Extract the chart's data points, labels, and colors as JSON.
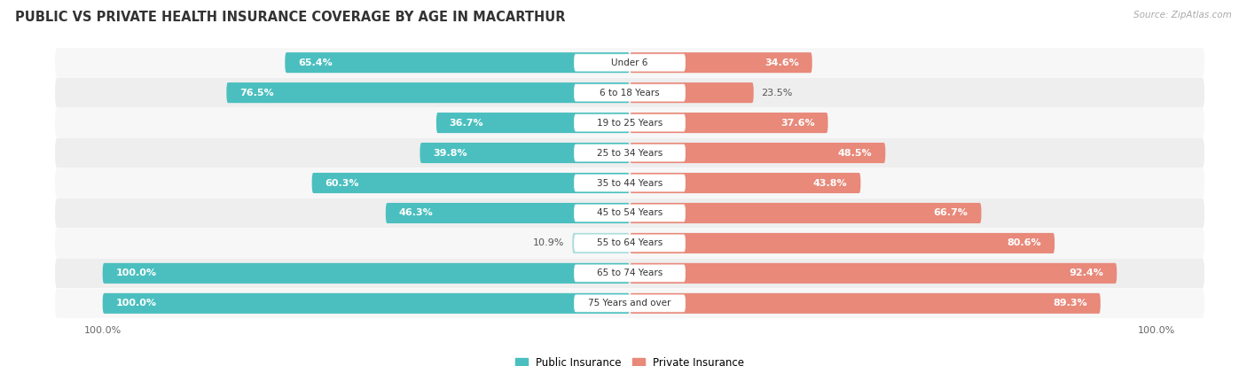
{
  "title": "PUBLIC VS PRIVATE HEALTH INSURANCE COVERAGE BY AGE IN MACARTHUR",
  "source": "Source: ZipAtlas.com",
  "categories": [
    "Under 6",
    "6 to 18 Years",
    "19 to 25 Years",
    "25 to 34 Years",
    "35 to 44 Years",
    "45 to 54 Years",
    "55 to 64 Years",
    "65 to 74 Years",
    "75 Years and over"
  ],
  "public_values": [
    65.4,
    76.5,
    36.7,
    39.8,
    60.3,
    46.3,
    10.9,
    100.0,
    100.0
  ],
  "private_values": [
    34.6,
    23.5,
    37.6,
    48.5,
    43.8,
    66.7,
    80.6,
    92.4,
    89.3
  ],
  "public_color": "#4bbfbf",
  "public_color_light": "#aadcdc",
  "private_color": "#e8897a",
  "row_bg_light": "#f7f7f7",
  "row_bg_dark": "#eeeeee",
  "title_fontsize": 10.5,
  "label_fontsize": 8.0,
  "source_fontsize": 7.5,
  "tick_fontsize": 8.0,
  "figsize": [
    14.06,
    4.13
  ],
  "dpi": 100
}
